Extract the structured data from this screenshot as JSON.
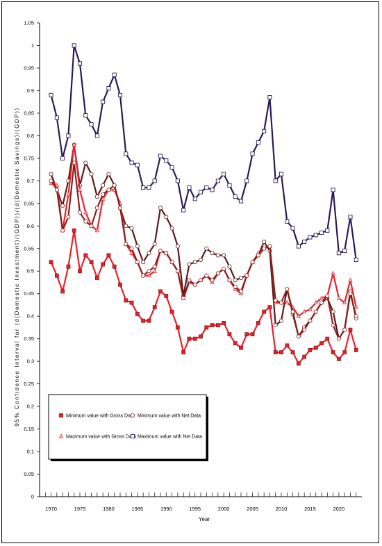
{
  "chart_data": {
    "type": "line",
    "xlabel": "Year",
    "ylabel": "95% Confidence Interval for (d(Domestic Investment)/(GDP))/(d(Domestic Savings)/(GDP))",
    "xlim": [
      1968,
      2024
    ],
    "ylim": [
      0,
      1.05
    ],
    "xticks": [
      1970,
      1975,
      1980,
      1985,
      1990,
      1995,
      2000,
      2005,
      2010,
      2015,
      2020
    ],
    "yticks": [
      0,
      0.05,
      0.1,
      0.15,
      0.2,
      0.25,
      0.3,
      0.35,
      0.4,
      0.45,
      0.5,
      0.55,
      0.6,
      0.65,
      0.7,
      0.75,
      0.8,
      0.85,
      0.9,
      0.95,
      1,
      1.05
    ],
    "ytick_labels": [
      "0",
      "0.05",
      "0.1",
      "0.15",
      "0.2",
      "0.25",
      "0.3",
      "0.35",
      "0.4",
      "0.45",
      "0.5",
      "0.55",
      "0.6",
      "0.65",
      "0.7",
      "0.75",
      "0.8",
      "0.85",
      "0.9",
      "0.95",
      "1",
      "1.05"
    ],
    "grid": false,
    "legend_placement": "bottom-left",
    "x": [
      1970,
      1971,
      1972,
      1973,
      1974,
      1975,
      1976,
      1977,
      1978,
      1979,
      1980,
      1981,
      1982,
      1983,
      1984,
      1985,
      1986,
      1987,
      1988,
      1989,
      1990,
      1991,
      1992,
      1993,
      1994,
      1995,
      1996,
      1997,
      1998,
      1999,
      2000,
      2001,
      2002,
      2003,
      2004,
      2005,
      2006,
      2007,
      2008,
      2009,
      2010,
      2011,
      2012,
      2013,
      2014,
      2015,
      2016,
      2017,
      2018,
      2019,
      2020,
      2021,
      2022,
      2023
    ],
    "series": [
      {
        "name": "Minimum value with Gross Data",
        "color": "#e8202a",
        "marker": "square",
        "values": [
          0.52,
          0.49,
          0.455,
          0.51,
          0.59,
          0.5,
          0.535,
          0.52,
          0.485,
          0.515,
          0.535,
          0.51,
          0.47,
          0.435,
          0.43,
          0.405,
          0.39,
          0.39,
          0.42,
          0.455,
          0.445,
          0.41,
          0.375,
          0.32,
          0.35,
          0.35,
          0.355,
          0.375,
          0.38,
          0.38,
          0.385,
          0.36,
          0.34,
          0.33,
          0.36,
          0.36,
          0.385,
          0.41,
          0.42,
          0.32,
          0.32,
          0.335,
          0.32,
          0.295,
          0.31,
          0.325,
          0.33,
          0.34,
          0.35,
          0.32,
          0.305,
          0.32,
          0.37,
          0.325
        ]
      },
      {
        "name": "Minimum value with Net Data",
        "color": "#8a1f1a",
        "marker": "circle",
        "values": [
          0.7,
          0.68,
          0.59,
          0.62,
          0.74,
          0.63,
          0.61,
          0.6,
          0.64,
          0.67,
          0.68,
          0.69,
          0.64,
          0.56,
          0.55,
          0.52,
          0.49,
          0.5,
          0.51,
          0.545,
          0.54,
          0.52,
          0.5,
          0.44,
          0.48,
          0.47,
          0.48,
          0.49,
          0.48,
          0.495,
          0.505,
          0.48,
          0.465,
          0.455,
          0.49,
          0.52,
          0.535,
          0.55,
          0.555,
          0.435,
          0.43,
          0.46,
          0.41,
          0.355,
          0.37,
          0.39,
          0.41,
          0.43,
          0.445,
          0.38,
          0.35,
          0.37,
          0.45,
          0.4
        ]
      },
      {
        "name": "Maximum value with Gross Data",
        "color": "#e8202a",
        "marker": "triangle",
        "values": [
          0.695,
          0.69,
          0.59,
          0.67,
          0.78,
          0.68,
          0.63,
          0.6,
          0.59,
          0.66,
          0.68,
          0.68,
          0.65,
          0.56,
          0.54,
          0.52,
          0.49,
          0.49,
          0.5,
          0.545,
          0.54,
          0.52,
          0.5,
          0.44,
          0.475,
          0.47,
          0.48,
          0.49,
          0.475,
          0.495,
          0.505,
          0.48,
          0.46,
          0.45,
          0.49,
          0.52,
          0.54,
          0.55,
          0.555,
          0.43,
          0.43,
          0.43,
          0.42,
          0.4,
          0.41,
          0.415,
          0.43,
          0.44,
          0.445,
          0.495,
          0.44,
          0.43,
          0.48,
          0.42
        ]
      },
      {
        "name": "Maximum value with Net Data",
        "color": "#2a1a55",
        "marker": "square-open",
        "values": [
          0.89,
          0.84,
          0.75,
          0.8,
          1.0,
          0.96,
          0.845,
          0.825,
          0.8,
          0.875,
          0.905,
          0.935,
          0.89,
          0.76,
          0.74,
          0.735,
          0.685,
          0.685,
          0.7,
          0.755,
          0.745,
          0.73,
          0.7,
          0.635,
          0.685,
          0.66,
          0.675,
          0.685,
          0.68,
          0.7,
          0.715,
          0.69,
          0.665,
          0.655,
          0.7,
          0.76,
          0.785,
          0.81,
          0.885,
          0.7,
          0.715,
          0.61,
          0.595,
          0.555,
          0.565,
          0.575,
          0.58,
          0.585,
          0.59,
          0.68,
          0.54,
          0.545,
          0.62,
          0.525
        ]
      }
    ],
    "net_gross_overlay_series": {
      "name": "",
      "color": "#5a1a1a",
      "marker": "circle",
      "values": [
        0.715,
        0.68,
        0.645,
        0.7,
        0.78,
        0.69,
        0.74,
        0.715,
        0.665,
        0.69,
        0.715,
        0.69,
        0.64,
        0.6,
        0.595,
        0.555,
        0.52,
        0.54,
        0.56,
        0.64,
        0.62,
        0.595,
        0.555,
        0.445,
        0.515,
        0.52,
        0.525,
        0.55,
        0.54,
        0.535,
        0.535,
        0.51,
        0.48,
        0.485,
        0.49,
        0.52,
        0.535,
        0.565,
        0.545,
        0.38,
        0.39,
        0.46,
        0.405,
        0.355,
        0.375,
        0.39,
        0.41,
        0.43,
        0.44,
        0.41,
        0.35,
        0.37,
        0.455,
        0.395
      ]
    }
  }
}
